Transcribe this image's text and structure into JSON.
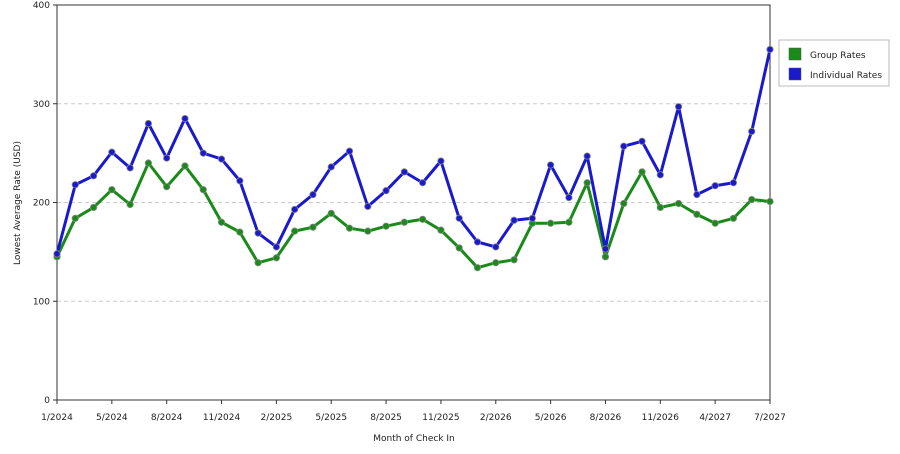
{
  "chart_data": {
    "type": "line",
    "x_label": "Month of Check In",
    "y_label": "Lowest Average Rate (USD)",
    "categories": [
      "1/2024",
      null,
      null,
      "5/2024",
      null,
      null,
      "8/2024",
      null,
      null,
      "11/2024",
      null,
      null,
      "2/2025",
      null,
      null,
      "5/2025",
      null,
      null,
      "8/2025",
      null,
      null,
      "11/2025",
      null,
      null,
      "2/2026",
      null,
      null,
      "5/2026",
      null,
      null,
      "8/2026",
      null,
      null,
      "11/2026",
      null,
      null,
      "4/2027",
      null,
      null,
      "7/2027"
    ],
    "series": [
      {
        "name": "Group Rates",
        "color": "#1a8a1a",
        "values": [
          145,
          184,
          195,
          213,
          198,
          240,
          216,
          237,
          213,
          180,
          170,
          139,
          144,
          171,
          175,
          189,
          174,
          171,
          176,
          180,
          183,
          172,
          154,
          134,
          139,
          142,
          179,
          179,
          180,
          220,
          145,
          199,
          231,
          195,
          199,
          188,
          179,
          184,
          203,
          201
        ]
      },
      {
        "name": "Individual Rates",
        "color": "#1a1acc",
        "values": [
          148,
          218,
          227,
          251,
          235,
          280,
          245,
          285,
          250,
          244,
          222,
          169,
          155,
          193,
          208,
          236,
          252,
          196,
          212,
          231,
          220,
          242,
          184,
          160,
          155,
          182,
          184,
          238,
          205,
          247,
          153,
          257,
          262,
          228,
          297,
          208,
          217,
          220,
          272,
          355
        ]
      }
    ],
    "ylim": [
      0,
      400
    ],
    "yticks": [
      0,
      100,
      200,
      300,
      400
    ],
    "grid": true,
    "legend": "right"
  }
}
